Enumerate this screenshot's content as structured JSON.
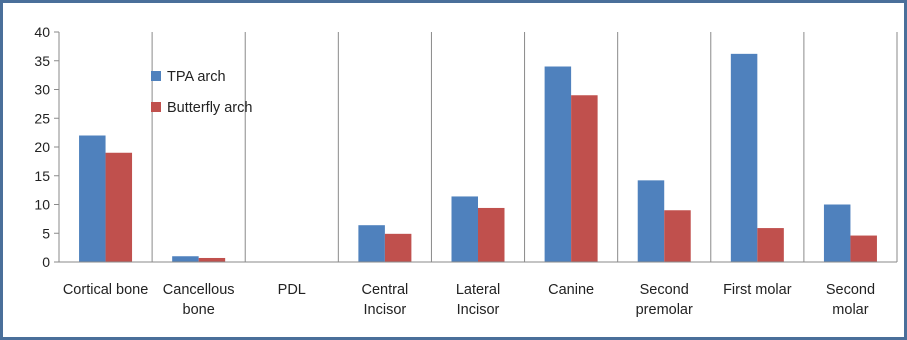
{
  "chart_data": {
    "type": "bar",
    "categories": [
      [
        "Cortical bone"
      ],
      [
        "Cancellous",
        "bone"
      ],
      [
        "PDL"
      ],
      [
        "Central",
        "Incisor"
      ],
      [
        "Lateral",
        "Incisor"
      ],
      [
        "Canine"
      ],
      [
        "Second",
        "premolar"
      ],
      [
        "First molar"
      ],
      [
        "Second",
        "molar"
      ]
    ],
    "series": [
      {
        "name": "TPA arch",
        "color": "#4f81bd",
        "values": [
          22,
          1,
          0,
          6.4,
          11.4,
          34,
          14.2,
          36.2,
          10
        ]
      },
      {
        "name": "Butterfly arch",
        "color": "#c0504d",
        "values": [
          19,
          0.7,
          0,
          4.9,
          9.4,
          29,
          9,
          5.9,
          4.6
        ]
      }
    ],
    "ylim": [
      0,
      40
    ],
    "yticks": [
      0,
      5,
      10,
      15,
      20,
      25,
      30,
      35,
      40
    ],
    "grid": "vertical category separators",
    "legend_position": "top-left inside plot"
  }
}
